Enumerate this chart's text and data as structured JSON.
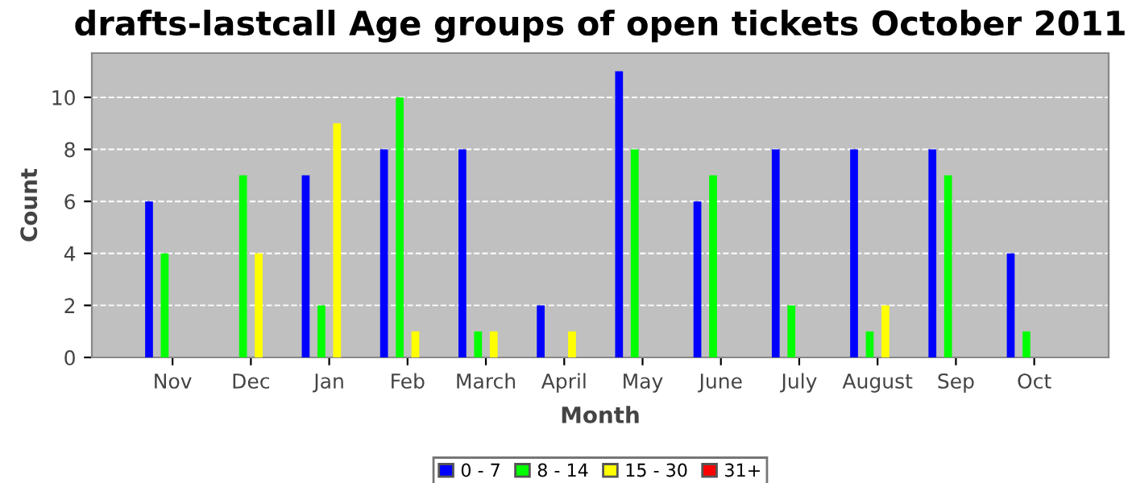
{
  "chart_data": {
    "type": "bar",
    "title": "drafts-lastcall Age groups of open tickets October 2011",
    "xlabel": "Month",
    "ylabel": "Count",
    "categories": [
      "Nov",
      "Dec",
      "Jan",
      "Feb",
      "March",
      "April",
      "May",
      "June",
      "July",
      "August",
      "Sep",
      "Oct"
    ],
    "series": [
      {
        "name": "0 - 7",
        "color": "#0000ff",
        "values": [
          6,
          0,
          7,
          8,
          8,
          2,
          11,
          6,
          8,
          8,
          8,
          4
        ]
      },
      {
        "name": "8 - 14",
        "color": "#00ff00",
        "values": [
          4,
          7,
          2,
          10,
          1,
          0,
          8,
          7,
          2,
          1,
          7,
          1
        ]
      },
      {
        "name": "15 - 30",
        "color": "#ffff00",
        "values": [
          0,
          4,
          9,
          1,
          1,
          1,
          0,
          0,
          0,
          2,
          0,
          0
        ]
      },
      {
        "name": "31+",
        "color": "#ff0000",
        "values": [
          0,
          0,
          0,
          0,
          0,
          0,
          0,
          0,
          0,
          0,
          0,
          0
        ]
      }
    ],
    "ylim": [
      0,
      11.7
    ],
    "yticks": [
      0,
      2,
      4,
      6,
      8,
      10
    ],
    "grid": "y",
    "legend": "bottom"
  }
}
